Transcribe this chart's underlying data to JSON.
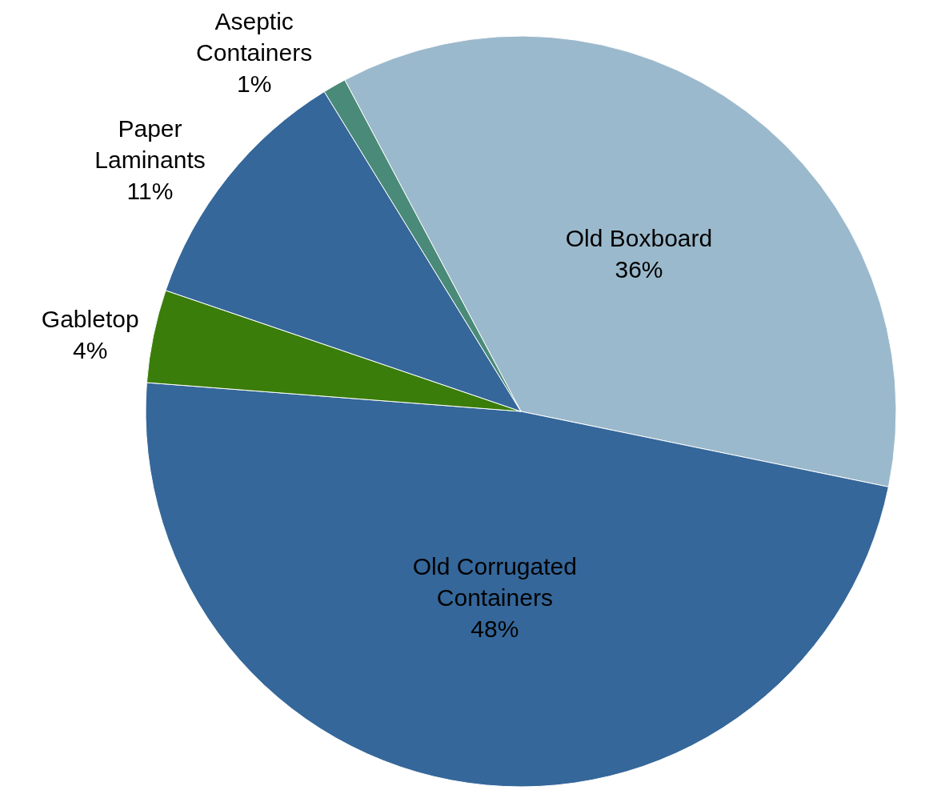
{
  "chart_data": {
    "type": "pie",
    "categories": [
      "Old Boxboard",
      "Old Corrugated Containers",
      "Gabletop",
      "Paper Laminants",
      "Aseptic Containers"
    ],
    "values": [
      36,
      48,
      4,
      11,
      1
    ],
    "value_labels": [
      "36%",
      "48%",
      "4%",
      "11%",
      "1%"
    ],
    "colors": [
      "#9bb9cc",
      "#35679a",
      "#3a7d0a",
      "#35679a",
      "#4a8a78"
    ],
    "legend": false
  }
}
